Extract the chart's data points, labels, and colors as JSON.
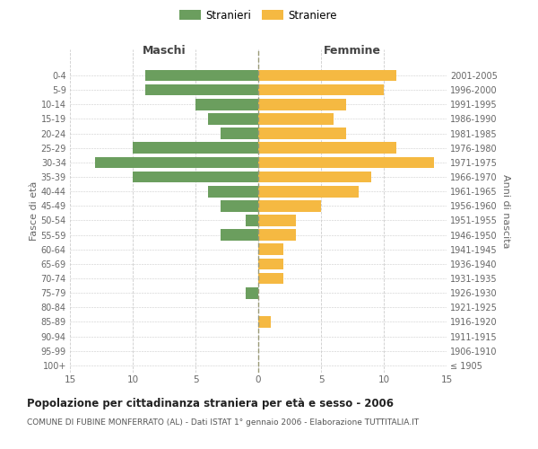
{
  "age_groups": [
    "100+",
    "95-99",
    "90-94",
    "85-89",
    "80-84",
    "75-79",
    "70-74",
    "65-69",
    "60-64",
    "55-59",
    "50-54",
    "45-49",
    "40-44",
    "35-39",
    "30-34",
    "25-29",
    "20-24",
    "15-19",
    "10-14",
    "5-9",
    "0-4"
  ],
  "birth_years": [
    "≤ 1905",
    "1906-1910",
    "1911-1915",
    "1916-1920",
    "1921-1925",
    "1926-1930",
    "1931-1935",
    "1936-1940",
    "1941-1945",
    "1946-1950",
    "1951-1955",
    "1956-1960",
    "1961-1965",
    "1966-1970",
    "1971-1975",
    "1976-1980",
    "1981-1985",
    "1986-1990",
    "1991-1995",
    "1996-2000",
    "2001-2005"
  ],
  "males": [
    0,
    0,
    0,
    0,
    0,
    1,
    0,
    0,
    0,
    3,
    1,
    3,
    4,
    10,
    13,
    10,
    3,
    4,
    5,
    9,
    9
  ],
  "females": [
    0,
    0,
    0,
    1,
    0,
    0,
    2,
    2,
    2,
    3,
    3,
    5,
    8,
    9,
    14,
    11,
    7,
    6,
    7,
    10,
    11
  ],
  "male_color": "#6b9e5e",
  "female_color": "#f5b942",
  "title": "Popolazione per cittadinanza straniera per età e sesso - 2006",
  "subtitle": "COMUNE DI FUBINE MONFERRATO (AL) - Dati ISTAT 1° gennaio 2006 - Elaborazione TUTTITALIA.IT",
  "ylabel_left": "Fasce di età",
  "ylabel_right": "Anni di nascita",
  "header_left": "Maschi",
  "header_right": "Femmine",
  "legend_male": "Stranieri",
  "legend_female": "Straniere",
  "xlim": 15,
  "background_color": "#ffffff",
  "grid_color": "#cccccc"
}
